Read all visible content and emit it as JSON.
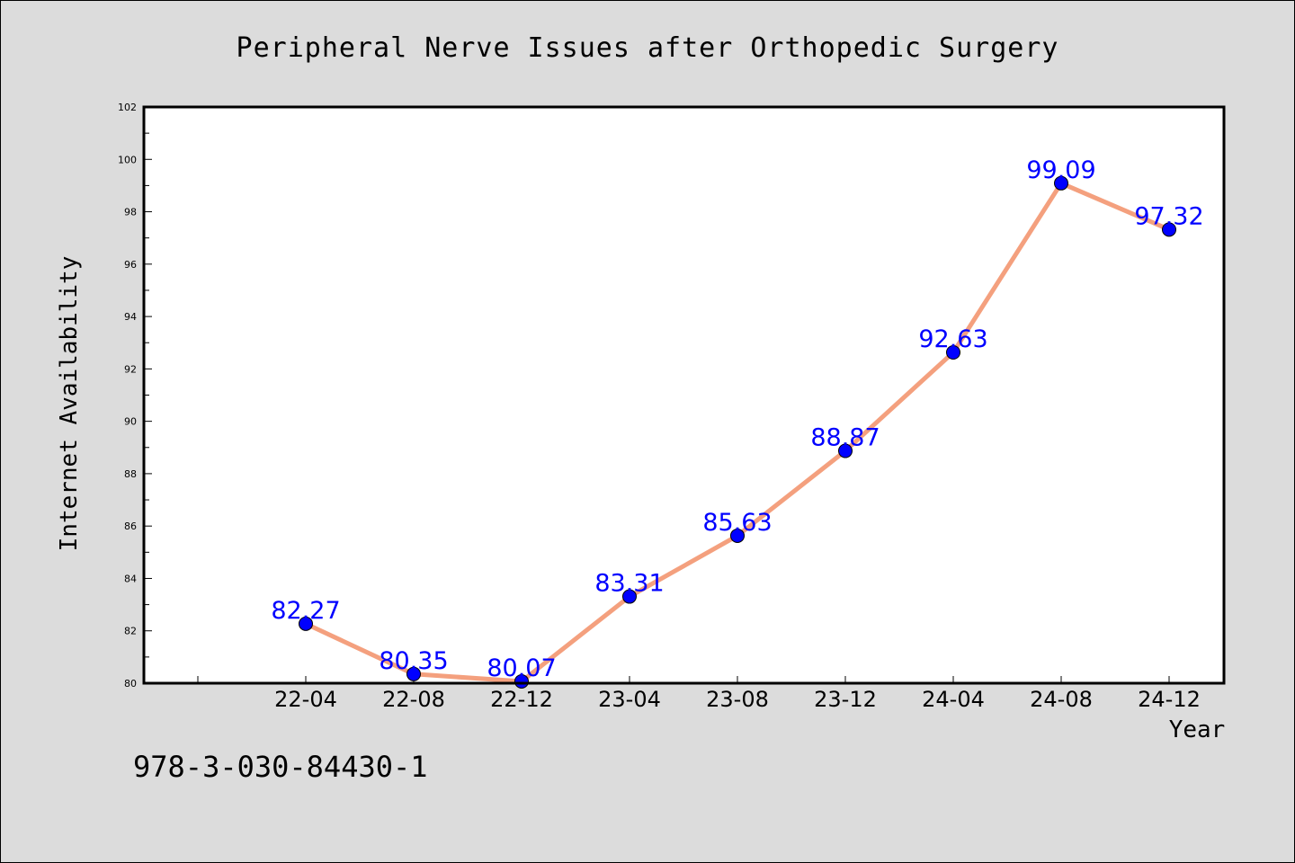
{
  "chart_data": {
    "type": "line",
    "title": "Peripheral Nerve Issues after Orthopedic Surgery",
    "xlabel": "Year",
    "ylabel": "Internet Availability",
    "categories": [
      "22-04",
      "22-08",
      "22-12",
      "23-04",
      "23-08",
      "23-12",
      "24-04",
      "24-08",
      "24-12"
    ],
    "series": [
      {
        "values": [
          82.27,
          80.35,
          80.07,
          83.31,
          85.63,
          88.87,
          92.63,
          99.09,
          97.32
        ],
        "data_labels": [
          "82.27",
          "80.35",
          "80.07",
          "83.31",
          "85.63",
          "88.87",
          "92.63",
          "99.09",
          "97.32"
        ]
      }
    ],
    "ylim": [
      80,
      102
    ],
    "yticks": [
      "80",
      "82",
      "84",
      "86",
      "88",
      "90",
      "92",
      "94",
      "96",
      "98",
      "100",
      "102"
    ],
    "grid": false,
    "legend": "none"
  },
  "footer_text": "978-3-030-84430-1",
  "colors": {
    "background": "#dcdcdc",
    "plot_background": "#ffffff",
    "line": "#f4a07e",
    "marker": "#0000ff",
    "data_label": "#0000ff"
  }
}
